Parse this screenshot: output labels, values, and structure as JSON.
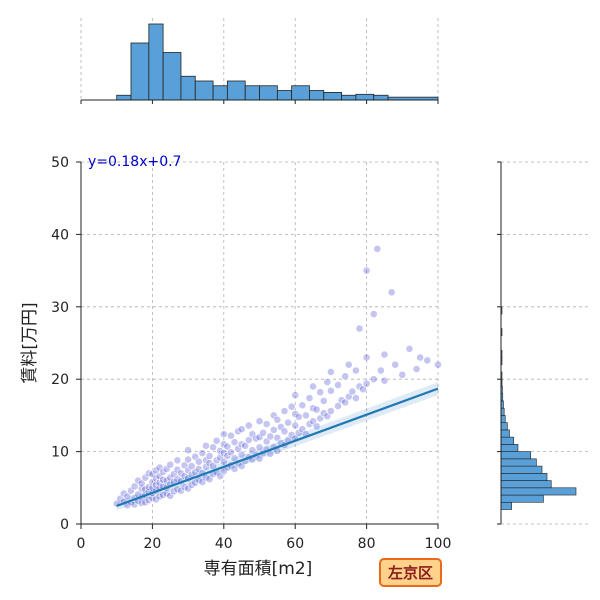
{
  "chart_data": {
    "type": "scatter",
    "xlabel": "専有面積[m2]",
    "ylabel": "賃料[万円]",
    "xlim": [
      0,
      100
    ],
    "ylim": [
      0,
      50
    ],
    "x_ticks": [
      "0",
      "20",
      "40",
      "60",
      "80",
      "100"
    ],
    "y_ticks": [
      "0",
      "10",
      "20",
      "30",
      "40",
      "50"
    ],
    "grid": true,
    "regression": {
      "equation": "y=0.18x+0.7",
      "slope": 0.18,
      "intercept": 0.7,
      "x_range": [
        10,
        100
      ]
    },
    "badge": "左京区",
    "points": [
      [
        10,
        2.8
      ],
      [
        11,
        3.5
      ],
      [
        12,
        3.1
      ],
      [
        12,
        4.2
      ],
      [
        13,
        2.6
      ],
      [
        13,
        3.8
      ],
      [
        14,
        3.0
      ],
      [
        14,
        4.6
      ],
      [
        15,
        2.7
      ],
      [
        15,
        3.6
      ],
      [
        15,
        5.2
      ],
      [
        16,
        3.2
      ],
      [
        16,
        4.1
      ],
      [
        16,
        6.0
      ],
      [
        17,
        2.9
      ],
      [
        17,
        3.7
      ],
      [
        17,
        4.9
      ],
      [
        17,
        5.6
      ],
      [
        18,
        3.0
      ],
      [
        18,
        4.0
      ],
      [
        18,
        4.8
      ],
      [
        18,
        6.4
      ],
      [
        19,
        3.3
      ],
      [
        19,
        4.4
      ],
      [
        19,
        5.1
      ],
      [
        19,
        7.0
      ],
      [
        20,
        3.6
      ],
      [
        20,
        4.3
      ],
      [
        20,
        5.0
      ],
      [
        20,
        5.8
      ],
      [
        20,
        6.9
      ],
      [
        21,
        3.4
      ],
      [
        21,
        4.6
      ],
      [
        21,
        5.4
      ],
      [
        21,
        6.3
      ],
      [
        21,
        7.4
      ],
      [
        22,
        3.8
      ],
      [
        22,
        4.9
      ],
      [
        22,
        5.7
      ],
      [
        22,
        6.6
      ],
      [
        22,
        7.8
      ],
      [
        23,
        4.0
      ],
      [
        23,
        5.2
      ],
      [
        23,
        6.1
      ],
      [
        23,
        7.2
      ],
      [
        24,
        4.2
      ],
      [
        24,
        5.0
      ],
      [
        24,
        6.0
      ],
      [
        24,
        7.6
      ],
      [
        25,
        3.9
      ],
      [
        25,
        5.5
      ],
      [
        25,
        6.4
      ],
      [
        25,
        8.2
      ],
      [
        26,
        4.5
      ],
      [
        26,
        5.8
      ],
      [
        26,
        6.9
      ],
      [
        27,
        4.8
      ],
      [
        27,
        6.2
      ],
      [
        27,
        7.5
      ],
      [
        27,
        8.8
      ],
      [
        28,
        4.6
      ],
      [
        28,
        5.9
      ],
      [
        28,
        7.0
      ],
      [
        29,
        5.1
      ],
      [
        29,
        6.6
      ],
      [
        29,
        8.1
      ],
      [
        30,
        4.9
      ],
      [
        30,
        6.3
      ],
      [
        30,
        7.4
      ],
      [
        30,
        8.9
      ],
      [
        30,
        10.2
      ],
      [
        31,
        5.4
      ],
      [
        31,
        6.8
      ],
      [
        31,
        8.0
      ],
      [
        32,
        5.7
      ],
      [
        32,
        7.2
      ],
      [
        32,
        9.3
      ],
      [
        33,
        6.1
      ],
      [
        33,
        7.6
      ],
      [
        33,
        8.6
      ],
      [
        34,
        5.8
      ],
      [
        34,
        7.0
      ],
      [
        34,
        9.8
      ],
      [
        35,
        6.4
      ],
      [
        35,
        7.9
      ],
      [
        35,
        8.8
      ],
      [
        35,
        10.8
      ],
      [
        36,
        6.2
      ],
      [
        36,
        8.4
      ],
      [
        36,
        9.4
      ],
      [
        37,
        6.9
      ],
      [
        37,
        8.0
      ],
      [
        37,
        10.6
      ],
      [
        38,
        7.1
      ],
      [
        38,
        8.8
      ],
      [
        38,
        11.5
      ],
      [
        39,
        6.6
      ],
      [
        39,
        9.2
      ],
      [
        39,
        10.1
      ],
      [
        40,
        7.3
      ],
      [
        40,
        8.6
      ],
      [
        40,
        9.8
      ],
      [
        40,
        11.0
      ],
      [
        40,
        12.4
      ],
      [
        41,
        7.8
      ],
      [
        41,
        9.4
      ],
      [
        41,
        10.7
      ],
      [
        42,
        8.1
      ],
      [
        42,
        9.9
      ],
      [
        42,
        12.2
      ],
      [
        43,
        7.6
      ],
      [
        43,
        9.1
      ],
      [
        43,
        11.3
      ],
      [
        44,
        8.4
      ],
      [
        44,
        10.4
      ],
      [
        44,
        12.8
      ],
      [
        45,
        8.0
      ],
      [
        45,
        9.6
      ],
      [
        45,
        11.0
      ],
      [
        45,
        13.1
      ],
      [
        46,
        8.7
      ],
      [
        46,
        10.8
      ],
      [
        47,
        9.2
      ],
      [
        47,
        11.6
      ],
      [
        47,
        13.6
      ],
      [
        48,
        8.9
      ],
      [
        48,
        10.2
      ],
      [
        48,
        12.4
      ],
      [
        49,
        9.5
      ],
      [
        49,
        11.8
      ],
      [
        50,
        9.0
      ],
      [
        50,
        10.6
      ],
      [
        50,
        12.0
      ],
      [
        50,
        14.2
      ],
      [
        51,
        9.8
      ],
      [
        51,
        12.6
      ],
      [
        52,
        10.3
      ],
      [
        52,
        11.4
      ],
      [
        52,
        13.8
      ],
      [
        53,
        9.7
      ],
      [
        53,
        12.1
      ],
      [
        54,
        10.6
      ],
      [
        54,
        13.0
      ],
      [
        54,
        15.0
      ],
      [
        55,
        10.1
      ],
      [
        55,
        11.9
      ],
      [
        55,
        14.4
      ],
      [
        56,
        11.2
      ],
      [
        56,
        13.4
      ],
      [
        57,
        10.9
      ],
      [
        57,
        12.8
      ],
      [
        57,
        15.6
      ],
      [
        58,
        11.6
      ],
      [
        58,
        14.0
      ],
      [
        59,
        12.3
      ],
      [
        59,
        16.2
      ],
      [
        60,
        11.8
      ],
      [
        60,
        13.6
      ],
      [
        60,
        15.2
      ],
      [
        60,
        17.8
      ],
      [
        61,
        12.6
      ],
      [
        61,
        14.8
      ],
      [
        62,
        13.1
      ],
      [
        62,
        16.4
      ],
      [
        63,
        12.4
      ],
      [
        63,
        15.0
      ],
      [
        64,
        13.8
      ],
      [
        64,
        17.4
      ],
      [
        65,
        14.2
      ],
      [
        65,
        16.0
      ],
      [
        65,
        19.0
      ],
      [
        66,
        13.5
      ],
      [
        66,
        15.8
      ],
      [
        67,
        14.6
      ],
      [
        67,
        18.2
      ],
      [
        68,
        15.3
      ],
      [
        68,
        17.0
      ],
      [
        69,
        14.9
      ],
      [
        69,
        19.6
      ],
      [
        70,
        15.6
      ],
      [
        70,
        18.4
      ],
      [
        70,
        21.0
      ],
      [
        72,
        16.3
      ],
      [
        72,
        19.2
      ],
      [
        73,
        17.1
      ],
      [
        74,
        16.8
      ],
      [
        74,
        20.4
      ],
      [
        75,
        17.6
      ],
      [
        75,
        22.0
      ],
      [
        76,
        18.3
      ],
      [
        77,
        17.4
      ],
      [
        77,
        21.2
      ],
      [
        78,
        19.0
      ],
      [
        78,
        27.0
      ],
      [
        79,
        18.6
      ],
      [
        80,
        19.4
      ],
      [
        80,
        23.0
      ],
      [
        80,
        35.0
      ],
      [
        82,
        20.0
      ],
      [
        82,
        29.0
      ],
      [
        83,
        38.0
      ],
      [
        84,
        21.2
      ],
      [
        85,
        19.8
      ],
      [
        85,
        23.4
      ],
      [
        87,
        32.0
      ],
      [
        88,
        22.0
      ],
      [
        90,
        20.6
      ],
      [
        92,
        24.2
      ],
      [
        94,
        21.4
      ],
      [
        95,
        23.0
      ],
      [
        97,
        22.6
      ],
      [
        100,
        22.0
      ]
    ],
    "x_hist": {
      "bins": [
        [
          10,
          14,
          1
        ],
        [
          14,
          19,
          12
        ],
        [
          19,
          23,
          16
        ],
        [
          23,
          28,
          10
        ],
        [
          28,
          32,
          5
        ],
        [
          32,
          37,
          4
        ],
        [
          37,
          41,
          3
        ],
        [
          41,
          46,
          4
        ],
        [
          46,
          50,
          3
        ],
        [
          50,
          55,
          3
        ],
        [
          55,
          59,
          2
        ],
        [
          59,
          64,
          3
        ],
        [
          64,
          68,
          2
        ],
        [
          68,
          73,
          1.6
        ],
        [
          73,
          77,
          1
        ],
        [
          77,
          82,
          1.2
        ],
        [
          82,
          86,
          1
        ],
        [
          86,
          100,
          0.6
        ]
      ],
      "max": 16
    },
    "y_hist": {
      "bins": [
        [
          2,
          3,
          1.5
        ],
        [
          3,
          4,
          6.0
        ],
        [
          4,
          5,
          10.6
        ],
        [
          5,
          6,
          7.1
        ],
        [
          6,
          7,
          6.5
        ],
        [
          7,
          8,
          5.8
        ],
        [
          8,
          9,
          5.0
        ],
        [
          9,
          10,
          4.2
        ],
        [
          10,
          11,
          2.4
        ],
        [
          11,
          12,
          1.8
        ],
        [
          12,
          13,
          1.2
        ],
        [
          13,
          14,
          0.9
        ],
        [
          14,
          15,
          0.6
        ],
        [
          15,
          16,
          0.45
        ],
        [
          16,
          17,
          0.35
        ],
        [
          17,
          18,
          0.25
        ],
        [
          18,
          19,
          0.2
        ],
        [
          19,
          20,
          0.15
        ],
        [
          20,
          21,
          0.1
        ],
        [
          22,
          23,
          0.1
        ],
        [
          23,
          24,
          0.1
        ],
        [
          26,
          27,
          0.05
        ],
        [
          29,
          30,
          0.05
        ]
      ],
      "max": 10.6
    },
    "colors": {
      "scatter": "#4a4ad8",
      "regression": "#1f77b4",
      "hist_fill": "#5aa0d8",
      "hist_edge": "#222222",
      "equation": "#0000cc",
      "badge_fill": "#ffd28c",
      "badge_border": "#e86a1a",
      "badge_text": "#8a1c1c"
    }
  }
}
